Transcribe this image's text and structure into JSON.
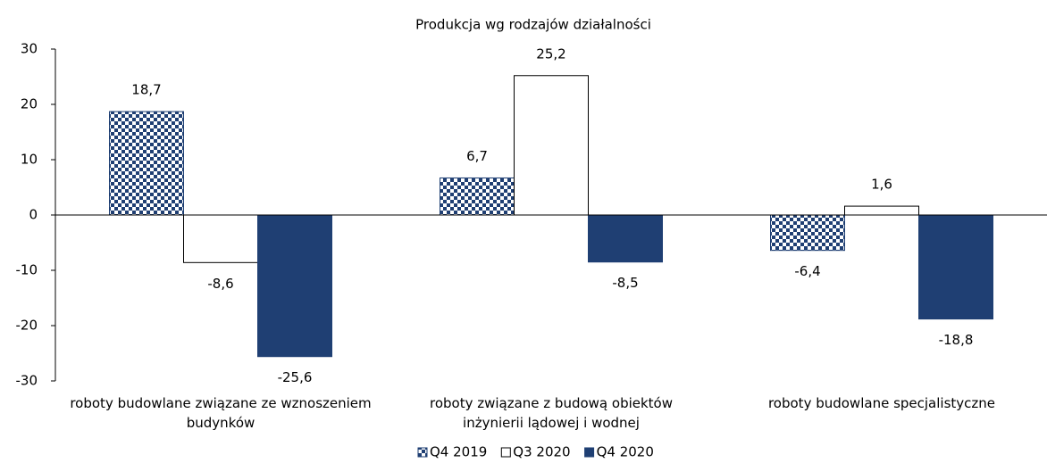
{
  "chart_data": {
    "type": "bar",
    "title": "Produkcja wg rodzajów działalności",
    "categories": [
      "roboty budowlane związane ze wznoszeniem budynków",
      "roboty związane z budową obiektów inżynierii lądowej i wodnej",
      "roboty budowlane specjalistyczne"
    ],
    "series": [
      {
        "name": "Q4 2019",
        "color": "#1f3f73",
        "pattern": "checker",
        "values": [
          18.7,
          6.7,
          -6.4
        ],
        "value_labels": [
          "18,7",
          "6,7",
          "-6,4"
        ]
      },
      {
        "name": "Q3 2020",
        "color": "#ffffff",
        "values": [
          -8.6,
          25.2,
          1.6
        ],
        "value_labels": [
          "-8,6",
          "25,2",
          "1,6"
        ]
      },
      {
        "name": "Q4 2020",
        "color": "#1f3f73",
        "values": [
          -25.6,
          -8.5,
          -18.8
        ],
        "value_labels": [
          "-25,6",
          "-8,5",
          "-18,8"
        ]
      }
    ],
    "ylim": [
      -30,
      30
    ],
    "yticks": [
      -30,
      -20,
      -10,
      0,
      10,
      20,
      30
    ],
    "legend": "bottom"
  }
}
